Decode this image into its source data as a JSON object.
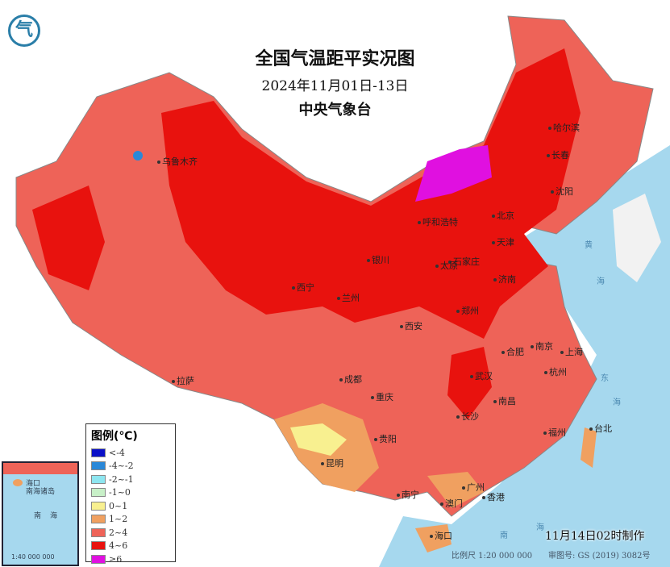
{
  "header": {
    "title": "全国气温距平实况图",
    "date_range": "2024年11月01日-13日",
    "issuer": "中央气象台"
  },
  "logo": {
    "icon": "cma-logo-icon",
    "text": "气"
  },
  "legend": {
    "title": "图例(℃)",
    "items": [
      {
        "label": "<-4",
        "color": "#0a10c8"
      },
      {
        "label": "-4~-2",
        "color": "#2a88d8"
      },
      {
        "label": "-2~-1",
        "color": "#8ee6f0"
      },
      {
        "label": "-1~0",
        "color": "#c8f0c8"
      },
      {
        "label": "0~1",
        "color": "#f8f090"
      },
      {
        "label": "1~2",
        "color": "#f0a060"
      },
      {
        "label": "2~4",
        "color": "#ee6358"
      },
      {
        "label": "4~6",
        "color": "#e8120e"
      },
      {
        "label": "≥6",
        "color": "#e010e0"
      }
    ]
  },
  "cities": [
    "乌鲁木齐",
    "哈尔滨",
    "长春",
    "沈阳",
    "呼和浩特",
    "北京",
    "天津",
    "石家庄",
    "太原",
    "银川",
    "济南",
    "西宁",
    "兰州",
    "郑州",
    "西安",
    "合肥",
    "南京",
    "上海",
    "拉萨",
    "成都",
    "武汉",
    "杭州",
    "重庆",
    "南昌",
    "长沙",
    "贵阳",
    "福州",
    "台北",
    "昆明",
    "南宁",
    "广州",
    "香港",
    "澳门",
    "海口"
  ],
  "seas": [
    "黄",
    "海",
    "东",
    "海",
    "南",
    "海"
  ],
  "inset": {
    "labels": [
      "海口",
      "南海诸岛",
      "南",
      "海",
      "1:40 000 000"
    ]
  },
  "footer": {
    "issued": "11月14日02时制作",
    "scale": "比例尺 1:20 000 000",
    "map_number": "审图号: GS (2019) 3082号"
  },
  "colors": {
    "sea": "#a6d8ee",
    "land_outside": "#f4f4f4",
    "dominant_anomaly": "#e8120e"
  }
}
